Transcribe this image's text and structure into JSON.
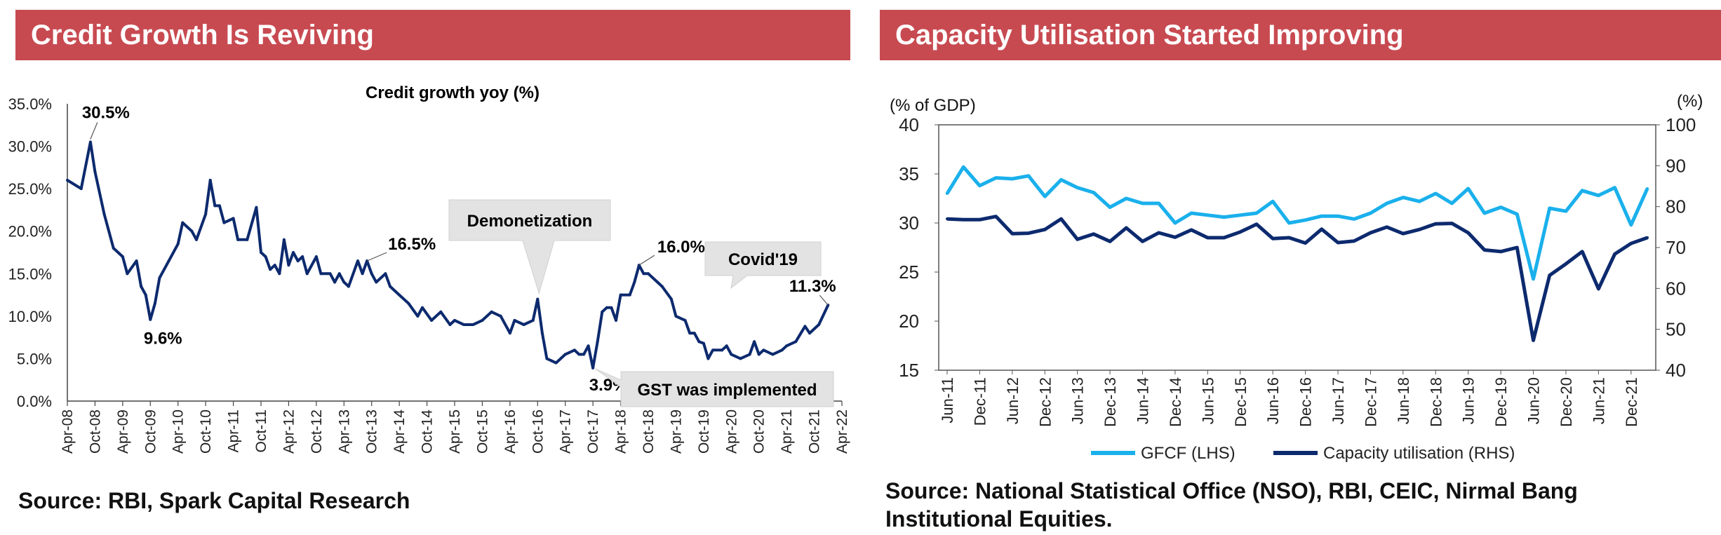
{
  "left_panel": {
    "banner_title": "Credit Growth Is Reviving",
    "source": "Source: RBI, Spark Capital Research"
  },
  "right_panel": {
    "banner_title": "Capacity Utilisation Started Improving",
    "source_line1": "Source: National Statistical Office (NSO), RBI, CEIC, Nirmal Bang",
    "source_line2": "Institutional Equities."
  },
  "colors": {
    "banner": "#c84a51",
    "credit_line": "#0d2a6e",
    "gfcf": "#1ab0ec",
    "capacity": "#0d2a6e"
  },
  "chart_data": [
    {
      "type": "line",
      "title": "Credit growth yoy (%)",
      "x_tick_labels": [
        "Apr-08",
        "Oct-08",
        "Apr-09",
        "Oct-09",
        "Apr-10",
        "Oct-10",
        "Apr-11",
        "Oct-11",
        "Apr-12",
        "Oct-12",
        "Apr-13",
        "Oct-13",
        "Apr-14",
        "Oct-14",
        "Apr-15",
        "Oct-15",
        "Apr-16",
        "Oct-16",
        "Apr-17",
        "Oct-17",
        "Apr-18",
        "Oct-18",
        "Apr-19",
        "Oct-19",
        "Apr-20",
        "Oct-20",
        "Apr-21",
        "Oct-21",
        "Apr-22"
      ],
      "y_tick_labels": [
        "0.0%",
        "5.0%",
        "10.0%",
        "15.0%",
        "20.0%",
        "25.0%",
        "30.0%",
        "35.0%"
      ],
      "ylim": [
        0,
        35
      ],
      "grid": false,
      "series": [
        {
          "values": [
            {
              "x": "Apr-08",
              "y": 26.0
            },
            {
              "x": "Jul-08",
              "y": 25.0
            },
            {
              "x": "Sep-08",
              "y": 30.5
            },
            {
              "x": "Oct-08",
              "y": 27.0
            },
            {
              "x": "Dec-08",
              "y": 22.0
            },
            {
              "x": "Feb-09",
              "y": 18.0
            },
            {
              "x": "Apr-09",
              "y": 17.0
            },
            {
              "x": "May-09",
              "y": 15.0
            },
            {
              "x": "Jul-09",
              "y": 16.5
            },
            {
              "x": "Aug-09",
              "y": 13.5
            },
            {
              "x": "Sep-09",
              "y": 12.5
            },
            {
              "x": "Oct-09",
              "y": 9.6
            },
            {
              "x": "Nov-09",
              "y": 11.5
            },
            {
              "x": "Dec-09",
              "y": 14.5
            },
            {
              "x": "Feb-10",
              "y": 16.5
            },
            {
              "x": "Apr-10",
              "y": 18.5
            },
            {
              "x": "May-10",
              "y": 21.0
            },
            {
              "x": "Jul-10",
              "y": 20.0
            },
            {
              "x": "Aug-10",
              "y": 19.0
            },
            {
              "x": "Oct-10",
              "y": 22.0
            },
            {
              "x": "Nov-10",
              "y": 26.0
            },
            {
              "x": "Dec-10",
              "y": 23.0
            },
            {
              "x": "Jan-11",
              "y": 23.0
            },
            {
              "x": "Feb-11",
              "y": 21.0
            },
            {
              "x": "Apr-11",
              "y": 21.5
            },
            {
              "x": "May-11",
              "y": 19.0
            },
            {
              "x": "Jul-11",
              "y": 19.0
            },
            {
              "x": "Sep-11",
              "y": 22.8
            },
            {
              "x": "Oct-11",
              "y": 17.5
            },
            {
              "x": "Nov-11",
              "y": 17.0
            },
            {
              "x": "Dec-11",
              "y": 15.5
            },
            {
              "x": "Jan-12",
              "y": 16.0
            },
            {
              "x": "Feb-12",
              "y": 15.0
            },
            {
              "x": "Mar-12",
              "y": 19.0
            },
            {
              "x": "Apr-12",
              "y": 16.0
            },
            {
              "x": "May-12",
              "y": 17.5
            },
            {
              "x": "Jun-12",
              "y": 16.5
            },
            {
              "x": "Jul-12",
              "y": 17.0
            },
            {
              "x": "Aug-12",
              "y": 15.0
            },
            {
              "x": "Oct-12",
              "y": 17.0
            },
            {
              "x": "Nov-12",
              "y": 15.0
            },
            {
              "x": "Jan-13",
              "y": 15.0
            },
            {
              "x": "Feb-13",
              "y": 14.0
            },
            {
              "x": "Mar-13",
              "y": 15.0
            },
            {
              "x": "Apr-13",
              "y": 14.0
            },
            {
              "x": "May-13",
              "y": 13.5
            },
            {
              "x": "Jul-13",
              "y": 16.5
            },
            {
              "x": "Aug-13",
              "y": 15.0
            },
            {
              "x": "Sep-13",
              "y": 16.5
            },
            {
              "x": "Oct-13",
              "y": 15.0
            },
            {
              "x": "Nov-13",
              "y": 14.0
            },
            {
              "x": "Jan-14",
              "y": 15.0
            },
            {
              "x": "Feb-14",
              "y": 13.5
            },
            {
              "x": "Apr-14",
              "y": 12.5
            },
            {
              "x": "Jun-14",
              "y": 11.5
            },
            {
              "x": "Aug-14",
              "y": 10.0
            },
            {
              "x": "Sep-14",
              "y": 11.0
            },
            {
              "x": "Nov-14",
              "y": 9.5
            },
            {
              "x": "Jan-15",
              "y": 10.5
            },
            {
              "x": "Mar-15",
              "y": 9.0
            },
            {
              "x": "Apr-15",
              "y": 9.5
            },
            {
              "x": "Jun-15",
              "y": 9.0
            },
            {
              "x": "Aug-15",
              "y": 9.0
            },
            {
              "x": "Oct-15",
              "y": 9.5
            },
            {
              "x": "Dec-15",
              "y": 10.5
            },
            {
              "x": "Feb-16",
              "y": 10.0
            },
            {
              "x": "Apr-16",
              "y": 8.0
            },
            {
              "x": "May-16",
              "y": 9.5
            },
            {
              "x": "Jul-16",
              "y": 9.0
            },
            {
              "x": "Sep-16",
              "y": 9.5
            },
            {
              "x": "Oct-16",
              "y": 12.0
            },
            {
              "x": "Nov-16",
              "y": 8.0
            },
            {
              "x": "Dec-16",
              "y": 5.0
            },
            {
              "x": "Feb-17",
              "y": 4.5
            },
            {
              "x": "Apr-17",
              "y": 5.5
            },
            {
              "x": "Jun-17",
              "y": 6.0
            },
            {
              "x": "Jul-17",
              "y": 5.5
            },
            {
              "x": "Aug-17",
              "y": 5.5
            },
            {
              "x": "Sep-17",
              "y": 6.5
            },
            {
              "x": "Oct-17",
              "y": 3.9
            },
            {
              "x": "Nov-17",
              "y": 7.0
            },
            {
              "x": "Dec-17",
              "y": 10.5
            },
            {
              "x": "Jan-18",
              "y": 11.0
            },
            {
              "x": "Feb-18",
              "y": 11.0
            },
            {
              "x": "Mar-18",
              "y": 9.5
            },
            {
              "x": "Apr-18",
              "y": 12.5
            },
            {
              "x": "Jun-18",
              "y": 12.5
            },
            {
              "x": "Jul-18",
              "y": 14.0
            },
            {
              "x": "Aug-18",
              "y": 16.0
            },
            {
              "x": "Sep-18",
              "y": 15.0
            },
            {
              "x": "Oct-18",
              "y": 15.0
            },
            {
              "x": "Dec-18",
              "y": 14.0
            },
            {
              "x": "Jan-19",
              "y": 13.5
            },
            {
              "x": "Mar-19",
              "y": 12.0
            },
            {
              "x": "Apr-19",
              "y": 10.0
            },
            {
              "x": "Jun-19",
              "y": 9.5
            },
            {
              "x": "Jul-19",
              "y": 8.0
            },
            {
              "x": "Aug-19",
              "y": 8.0
            },
            {
              "x": "Sep-19",
              "y": 7.0
            },
            {
              "x": "Oct-19",
              "y": 6.8
            },
            {
              "x": "Nov-19",
              "y": 5.0
            },
            {
              "x": "Dec-19",
              "y": 6.0
            },
            {
              "x": "Feb-20",
              "y": 6.0
            },
            {
              "x": "Mar-20",
              "y": 6.5
            },
            {
              "x": "Apr-20",
              "y": 5.5
            },
            {
              "x": "Jun-20",
              "y": 5.0
            },
            {
              "x": "Aug-20",
              "y": 5.5
            },
            {
              "x": "Sep-20",
              "y": 7.0
            },
            {
              "x": "Oct-20",
              "y": 5.5
            },
            {
              "x": "Nov-20",
              "y": 6.0
            },
            {
              "x": "Jan-21",
              "y": 5.5
            },
            {
              "x": "Mar-21",
              "y": 6.0
            },
            {
              "x": "Apr-21",
              "y": 6.5
            },
            {
              "x": "Jun-21",
              "y": 7.0
            },
            {
              "x": "Aug-21",
              "y": 8.8
            },
            {
              "x": "Sep-21",
              "y": 8.0
            },
            {
              "x": "Nov-21",
              "y": 9.0
            },
            {
              "x": "Jan-22",
              "y": 11.3
            }
          ]
        }
      ],
      "annotations": [
        {
          "text": "30.5%",
          "x": "Sep-08",
          "y": 30.5
        },
        {
          "text": "9.6%",
          "x": "Oct-09",
          "y": 9.6
        },
        {
          "text": "16.5%",
          "x": "Sep-13",
          "y": 16.5
        },
        {
          "text": "Demonetization",
          "x": "Oct-16",
          "y": 12.0
        },
        {
          "text": "3.9%",
          "x": "Oct-17",
          "y": 3.9
        },
        {
          "text": "GST was implemented",
          "x": "Oct-17",
          "y": 3.9
        },
        {
          "text": "16.0%",
          "x": "Aug-18",
          "y": 16.0
        },
        {
          "text": "Covid'19",
          "x": "Apr-20",
          "y": 12.5
        },
        {
          "text": "11.3%",
          "x": "Jan-22",
          "y": 11.3
        }
      ]
    },
    {
      "type": "line",
      "x_tick_labels": [
        "Jun-11",
        "Dec-11",
        "Jun-12",
        "Dec-12",
        "Jun-13",
        "Dec-13",
        "Jun-14",
        "Dec-14",
        "Jun-15",
        "Dec-15",
        "Jun-16",
        "Dec-16",
        "Jun-17",
        "Dec-17",
        "Jun-18",
        "Dec-18",
        "Jun-19",
        "Dec-19",
        "Jun-20",
        "Dec-20",
        "Jun-21",
        "Dec-21"
      ],
      "ylabel_left": "(% of GDP)",
      "ylabel_right": "(%)",
      "y_left_ticks": [
        "15",
        "20",
        "25",
        "30",
        "35",
        "40"
      ],
      "y_right_ticks": [
        "40",
        "50",
        "60",
        "70",
        "80",
        "90",
        "100"
      ],
      "ylim_left": [
        15,
        40
      ],
      "ylim_right": [
        40,
        100
      ],
      "grid": false,
      "legend": "bottom",
      "legend_labels": [
        "GFCF (LHS)",
        "Capacity utilisation (RHS)"
      ],
      "quarters": [
        "Jun-11",
        "Sep-11",
        "Dec-11",
        "Mar-12",
        "Jun-12",
        "Sep-12",
        "Dec-12",
        "Mar-13",
        "Jun-13",
        "Sep-13",
        "Dec-13",
        "Mar-14",
        "Jun-14",
        "Sep-14",
        "Dec-14",
        "Mar-15",
        "Jun-15",
        "Sep-15",
        "Dec-15",
        "Mar-16",
        "Jun-16",
        "Sep-16",
        "Dec-16",
        "Mar-17",
        "Jun-17",
        "Sep-17",
        "Dec-17",
        "Mar-18",
        "Jun-18",
        "Sep-18",
        "Dec-18",
        "Mar-19",
        "Jun-19",
        "Sep-19",
        "Dec-19",
        "Mar-20",
        "Jun-20",
        "Sep-20",
        "Dec-20",
        "Mar-21",
        "Jun-21",
        "Sep-21",
        "Dec-21",
        "Mar-22"
      ],
      "series": [
        {
          "name": "GFCF (LHS)",
          "axis": "left",
          "values": [
            33.0,
            35.7,
            33.8,
            34.6,
            34.5,
            34.8,
            32.7,
            34.4,
            33.6,
            33.1,
            31.6,
            32.5,
            32.0,
            32.0,
            30.0,
            31.0,
            30.8,
            30.6,
            30.8,
            31.0,
            32.2,
            30.0,
            30.3,
            30.7,
            30.7,
            30.4,
            31.0,
            32.0,
            32.6,
            32.2,
            33.0,
            32.0,
            33.5,
            31.0,
            31.6,
            30.9,
            24.3,
            31.5,
            31.2,
            33.3,
            32.8,
            33.6,
            29.8,
            33.5
          ]
        },
        {
          "name": "Capacity utilisation (RHS)",
          "axis": "right",
          "values": [
            77.0,
            76.8,
            76.8,
            77.6,
            73.4,
            73.5,
            74.4,
            77.0,
            72.0,
            73.3,
            71.5,
            74.8,
            71.5,
            73.6,
            72.5,
            74.3,
            72.4,
            72.4,
            73.8,
            75.7,
            72.2,
            72.4,
            71.1,
            74.5,
            71.2,
            71.6,
            73.6,
            75.0,
            73.4,
            74.4,
            75.8,
            75.9,
            73.6,
            69.4,
            69.0,
            70.0,
            47.3,
            63.2,
            66.0,
            69.0,
            59.9,
            68.4,
            71.0,
            72.4
          ]
        }
      ]
    }
  ]
}
